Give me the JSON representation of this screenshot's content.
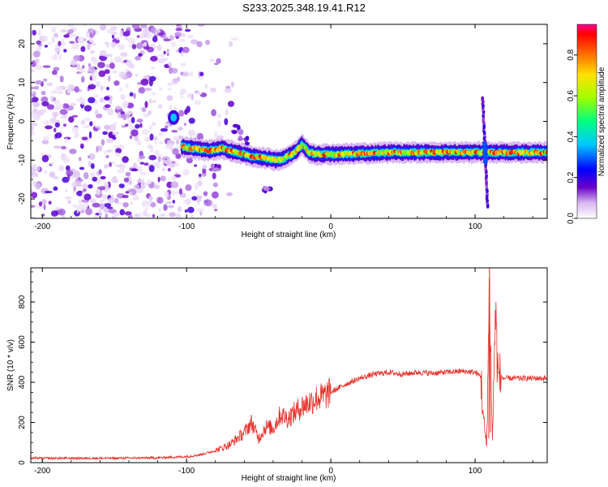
{
  "title": "S233.2025.348.19.41.R12",
  "chart_data": [
    {
      "type": "heatmap",
      "name": "spectrogram",
      "title": "S233.2025.348.19.41.R12",
      "xlabel": "Height of straight line (km)",
      "ylabel": "Frequency (Hz)",
      "xlim": [
        -208,
        150
      ],
      "ylim": [
        -25,
        25
      ],
      "xticks": [
        -200,
        -100,
        0,
        100
      ],
      "yticks": [
        -20,
        -10,
        0,
        10,
        20
      ],
      "ridge": {
        "description": "main frequency trace of normalized spectral amplitude",
        "points": [
          [
            -110,
            1
          ],
          [
            -103,
            -6.5
          ],
          [
            -95,
            -7
          ],
          [
            -85,
            -7.5
          ],
          [
            -75,
            -7
          ],
          [
            -65,
            -8
          ],
          [
            -55,
            -9
          ],
          [
            -45,
            -9.5
          ],
          [
            -38,
            -10
          ],
          [
            -32,
            -9.5
          ],
          [
            -25,
            -8
          ],
          [
            -20,
            -6
          ],
          [
            -15,
            -8
          ],
          [
            -10,
            -8.5
          ],
          [
            0,
            -8.5
          ],
          [
            20,
            -8.3
          ],
          [
            40,
            -8
          ],
          [
            60,
            -8
          ],
          [
            80,
            -8
          ],
          [
            100,
            -8
          ],
          [
            105,
            -8
          ],
          [
            110,
            -8
          ],
          [
            120,
            -8
          ],
          [
            140,
            -8
          ],
          [
            150,
            -8
          ]
        ],
        "noise_region_x": [
          -208,
          -90
        ],
        "spike_x": 107,
        "spike_y_range": [
          -22,
          6
        ]
      },
      "colorbar": {
        "label": "Normalized spectral amplitude",
        "ticks": [
          "0.0",
          "0.2",
          "0.4",
          "0.6",
          "0.8"
        ],
        "range": [
          0,
          0.95
        ]
      }
    },
    {
      "type": "line",
      "name": "snr",
      "xlabel": "Height of straight line (km)",
      "ylabel": "SNR (10 * v/v)",
      "xlim": [
        -208,
        150
      ],
      "ylim": [
        0,
        970
      ],
      "xticks": [
        -200,
        -100,
        0,
        100
      ],
      "yticks": [
        0,
        200,
        400,
        600,
        800
      ],
      "color": "#e8322c",
      "series": [
        {
          "name": "SNR",
          "x": [
            -208,
            -180,
            -150,
            -120,
            -100,
            -90,
            -80,
            -70,
            -60,
            -55,
            -50,
            -45,
            -40,
            -35,
            -30,
            -25,
            -20,
            -15,
            -10,
            -5,
            0,
            10,
            20,
            30,
            40,
            50,
            60,
            70,
            80,
            90,
            100,
            104,
            106,
            108,
            110,
            112,
            114,
            116,
            120,
            130,
            140,
            150
          ],
          "y": [
            22,
            22,
            22,
            24,
            30,
            40,
            60,
            90,
            150,
            200,
            120,
            180,
            170,
            240,
            220,
            250,
            280,
            300,
            320,
            330,
            350,
            390,
            420,
            440,
            450,
            440,
            450,
            445,
            450,
            455,
            450,
            430,
            200,
            80,
            880,
            100,
            750,
            430,
            420,
            420,
            420,
            420
          ]
        }
      ]
    }
  ]
}
